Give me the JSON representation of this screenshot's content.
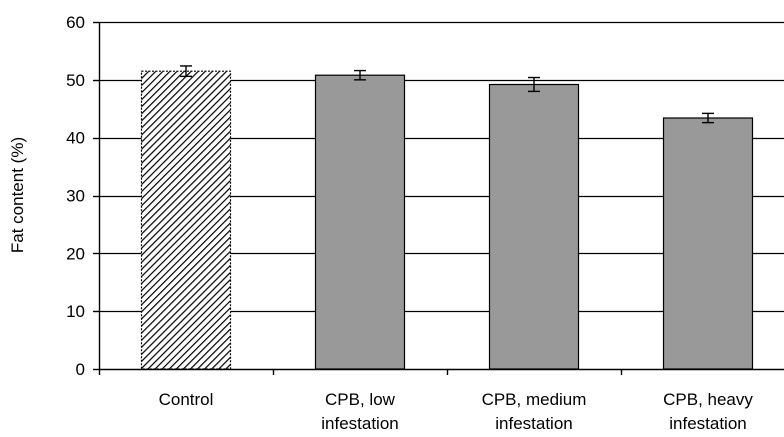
{
  "chart_data": {
    "type": "bar",
    "title": "",
    "xlabel": "",
    "ylabel": "Fat content (%)",
    "ylim": [
      0,
      60
    ],
    "yticks": [
      0,
      10,
      20,
      30,
      40,
      50,
      60
    ],
    "grid": true,
    "categories": [
      [
        "Control"
      ],
      [
        "CPB, low",
        "infestation"
      ],
      [
        "CPB, medium",
        "infestation"
      ],
      [
        "CPB, heavy",
        "infestation"
      ]
    ],
    "values": [
      51.5,
      50.8,
      49.2,
      43.4
    ],
    "errors": [
      0.9,
      0.8,
      1.2,
      0.8
    ],
    "bar_fills": [
      "hatched",
      "#999999",
      "#999999",
      "#999999"
    ]
  }
}
